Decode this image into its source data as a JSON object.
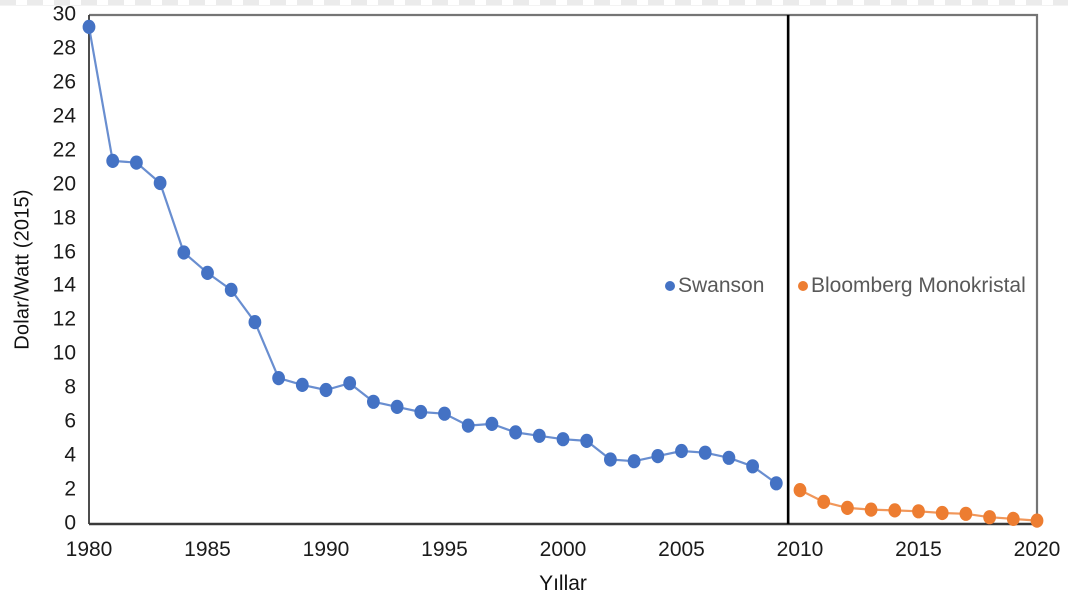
{
  "chart_data": {
    "type": "line",
    "title": "",
    "xlabel": "Yıllar",
    "ylabel": "Dolar/Watt (2015)",
    "xlim": [
      1980,
      2020
    ],
    "ylim": [
      0,
      30
    ],
    "x_ticks": [
      "1980",
      "1985",
      "1990",
      "1995",
      "2000",
      "2005",
      "2010",
      "2015",
      "2020"
    ],
    "x_tick_years": [
      1980,
      1985,
      1990,
      1995,
      2000,
      2005,
      2010,
      2015,
      2020
    ],
    "y_ticks": [
      "0",
      "2",
      "4",
      "6",
      "8",
      "10",
      "12",
      "14",
      "16",
      "18",
      "20",
      "22",
      "24",
      "26",
      "28",
      "30"
    ],
    "y_tick_values": [
      0,
      2,
      4,
      6,
      8,
      10,
      12,
      14,
      16,
      18,
      20,
      22,
      24,
      26,
      28,
      30
    ],
    "grid": false,
    "legend_position": "inside-right, mid-height",
    "divider_line_x": 2009.5,
    "divider_line_color": "#000000",
    "series": [
      {
        "name": "Swanson",
        "color": "#4472C4",
        "marker": "circle",
        "x": [
          1980,
          1981,
          1982,
          1983,
          1984,
          1985,
          1986,
          1987,
          1988,
          1989,
          1990,
          1991,
          1992,
          1993,
          1994,
          1995,
          1996,
          1997,
          1998,
          1999,
          2000,
          2001,
          2002,
          2003,
          2004,
          2005,
          2006,
          2007,
          2008,
          2009
        ],
        "values": [
          29.3,
          21.4,
          21.3,
          20.1,
          16.0,
          14.8,
          13.8,
          11.9,
          8.6,
          8.2,
          7.9,
          8.3,
          7.2,
          6.9,
          6.6,
          6.5,
          5.8,
          5.9,
          5.4,
          5.2,
          5.0,
          4.9,
          3.8,
          3.7,
          4.0,
          4.3,
          4.2,
          3.9,
          3.4,
          2.4
        ]
      },
      {
        "name": "Bloomberg Monokristal",
        "color": "#ED7D31",
        "marker": "circle",
        "x": [
          2010,
          2011,
          2012,
          2013,
          2014,
          2015,
          2016,
          2017,
          2018,
          2019,
          2020
        ],
        "values": [
          2.0,
          1.3,
          0.95,
          0.85,
          0.8,
          0.75,
          0.65,
          0.6,
          0.4,
          0.3,
          0.2
        ]
      }
    ]
  },
  "axis_colors": {
    "tick_label_color": "#1b1b1b",
    "legend_text_color": "#595959"
  }
}
